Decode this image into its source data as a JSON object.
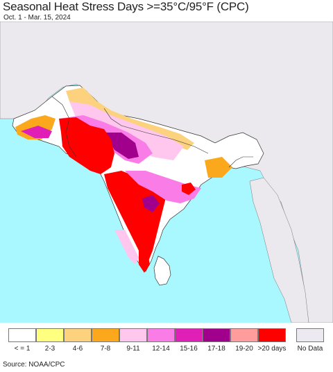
{
  "title": "Seasonal Heat Stress Days >=35°C/95°F (CPC)",
  "subtitle": "Oct. 1 - Mar. 15, 2024",
  "source": "Source: NOAA/CPC",
  "map": {
    "colors": {
      "ocean": "#aaf8ff",
      "land_outside": "#ebe8ee",
      "land_base": "#ffffff",
      "border": "#333333"
    }
  },
  "legend": {
    "items": [
      {
        "label": "< = 1",
        "color": "#ffffff"
      },
      {
        "label": "2-3",
        "color": "#ffff80"
      },
      {
        "label": "4-6",
        "color": "#fdd27f"
      },
      {
        "label": "7-8",
        "color": "#fba81c"
      },
      {
        "label": "9-11",
        "color": "#ffc6ee"
      },
      {
        "label": "12-14",
        "color": "#fa7ce6"
      },
      {
        "label": "15-16",
        "color": "#e01fb6"
      },
      {
        "label": "17-18",
        "color": "#a1008d"
      },
      {
        "label": "19-20",
        "color": "#ff9c9c"
      },
      {
        "label": ">20 days",
        "color": "#ff0000"
      }
    ],
    "nodata_label": "No Data"
  }
}
